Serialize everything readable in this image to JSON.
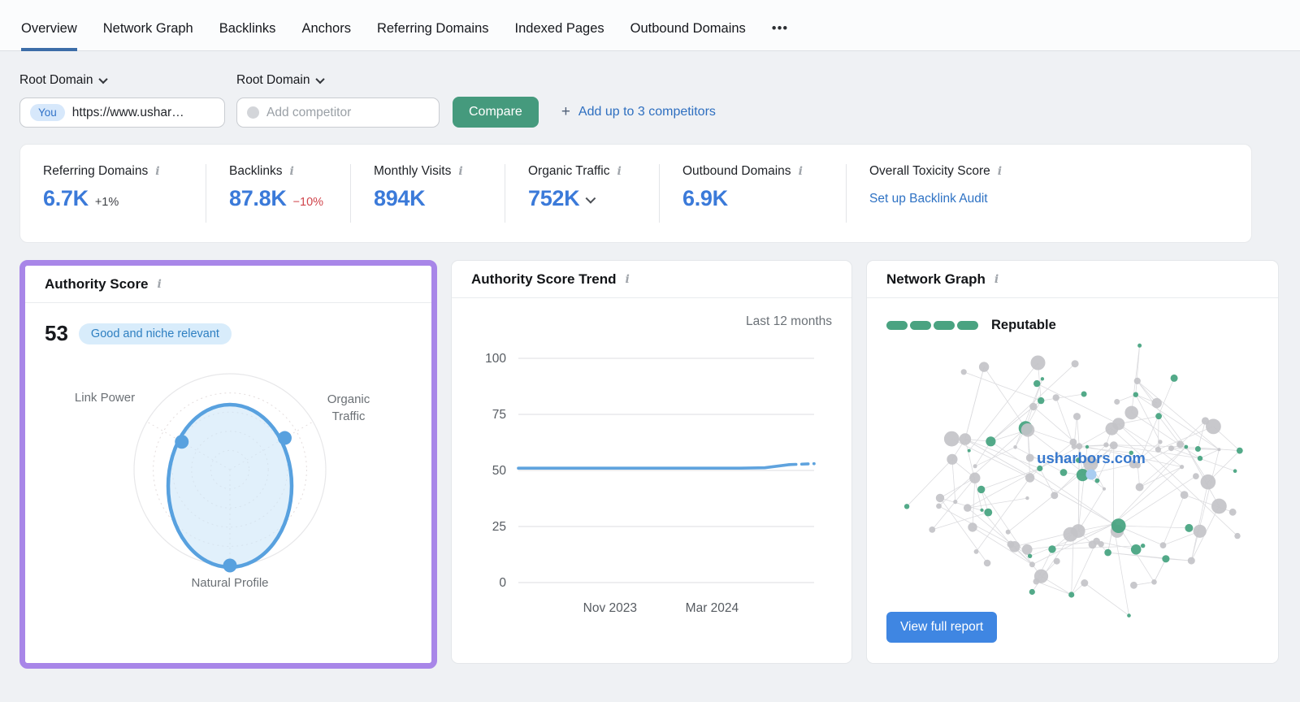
{
  "tabs": {
    "items": [
      {
        "label": "Overview",
        "active": true
      },
      {
        "label": "Network Graph",
        "active": false
      },
      {
        "label": "Backlinks",
        "active": false
      },
      {
        "label": "Anchors",
        "active": false
      },
      {
        "label": "Referring Domains",
        "active": false
      },
      {
        "label": "Indexed Pages",
        "active": false
      },
      {
        "label": "Outbound Domains",
        "active": false
      }
    ],
    "more_label": "•••"
  },
  "filters": {
    "you_scope_label": "Root Domain",
    "competitor_scope_label": "Root Domain",
    "you_badge": "You",
    "you_value": "https://www.ushar…",
    "competitor_placeholder": "Add competitor",
    "compare_button": "Compare",
    "add_plus": "+",
    "add_link": "Add up to 3 competitors"
  },
  "metrics": [
    {
      "label": "Referring Domains",
      "value": "6.7K",
      "delta": "+1%",
      "delta_color": "#3f4247"
    },
    {
      "label": "Backlinks",
      "value": "87.8K",
      "delta": "−10%",
      "delta_color": "#d0454c"
    },
    {
      "label": "Monthly Visits",
      "value": "894K"
    },
    {
      "label": "Organic Traffic",
      "value": "752K",
      "chevron": true
    },
    {
      "label": "Outbound Domains",
      "value": "6.9K"
    },
    {
      "label": "Overall Toxicity Score",
      "link": "Set up Backlink Audit"
    }
  ],
  "cards": {
    "authority_score": {
      "title": "Authority Score",
      "score": "53",
      "badge": "Good and niche relevant"
    },
    "trend": {
      "title": "Authority Score Trend",
      "range_label": "Last 12 months"
    },
    "network": {
      "title": "Network Graph",
      "legend": "Reputable",
      "button": "View full report"
    }
  },
  "icons": {
    "info": "i"
  },
  "colors": {
    "accent_blue": "#3b7ad9",
    "link_blue": "#2e72c4",
    "green": "#459a7d",
    "highlight_purple": "#a886e8",
    "negative_red": "#d0454c"
  },
  "chart_data": [
    {
      "id": "authority_score_radar",
      "type": "radar",
      "title": "Authority Score",
      "score": 53,
      "score_label": "Good and niche relevant",
      "axes": [
        "Link Power",
        "Organic Traffic",
        "Natural Profile"
      ],
      "values": [
        58,
        66,
        100
      ],
      "max": 100,
      "style": {
        "stroke": "#58a1df",
        "fill": "#cfe6f9",
        "grid": "#e3dcdc",
        "ring": "#e7e7e9"
      }
    },
    {
      "id": "authority_score_trend",
      "type": "line",
      "title": "Authority Score Trend",
      "legend": "Last 12 months",
      "ylim": [
        0,
        100
      ],
      "y_ticks": [
        0,
        25,
        50,
        75,
        100
      ],
      "x_tick_labels": [
        {
          "label": "Nov 2023",
          "pos": 0.31
        },
        {
          "label": "Mar 2024",
          "pos": 0.655
        }
      ],
      "values": [
        51,
        51,
        51,
        51,
        51,
        51,
        51,
        51,
        51,
        51,
        51.2,
        52.6,
        53
      ],
      "dashed_tail_segments": 1,
      "line_color": "#5fa3de",
      "grid": true
    },
    {
      "id": "network_graph",
      "type": "scatter-network",
      "center_label": "usharbors.com",
      "rating": {
        "segments": 4,
        "filled": 4,
        "label": "Reputable"
      },
      "node_count": 118,
      "green_fraction": 0.34,
      "colors": {
        "green": "#44a37f",
        "gray": "#c3c3c8",
        "root": "#a9cdf1",
        "edge": "#dcdcdf",
        "label": "#3778cd"
      }
    }
  ]
}
